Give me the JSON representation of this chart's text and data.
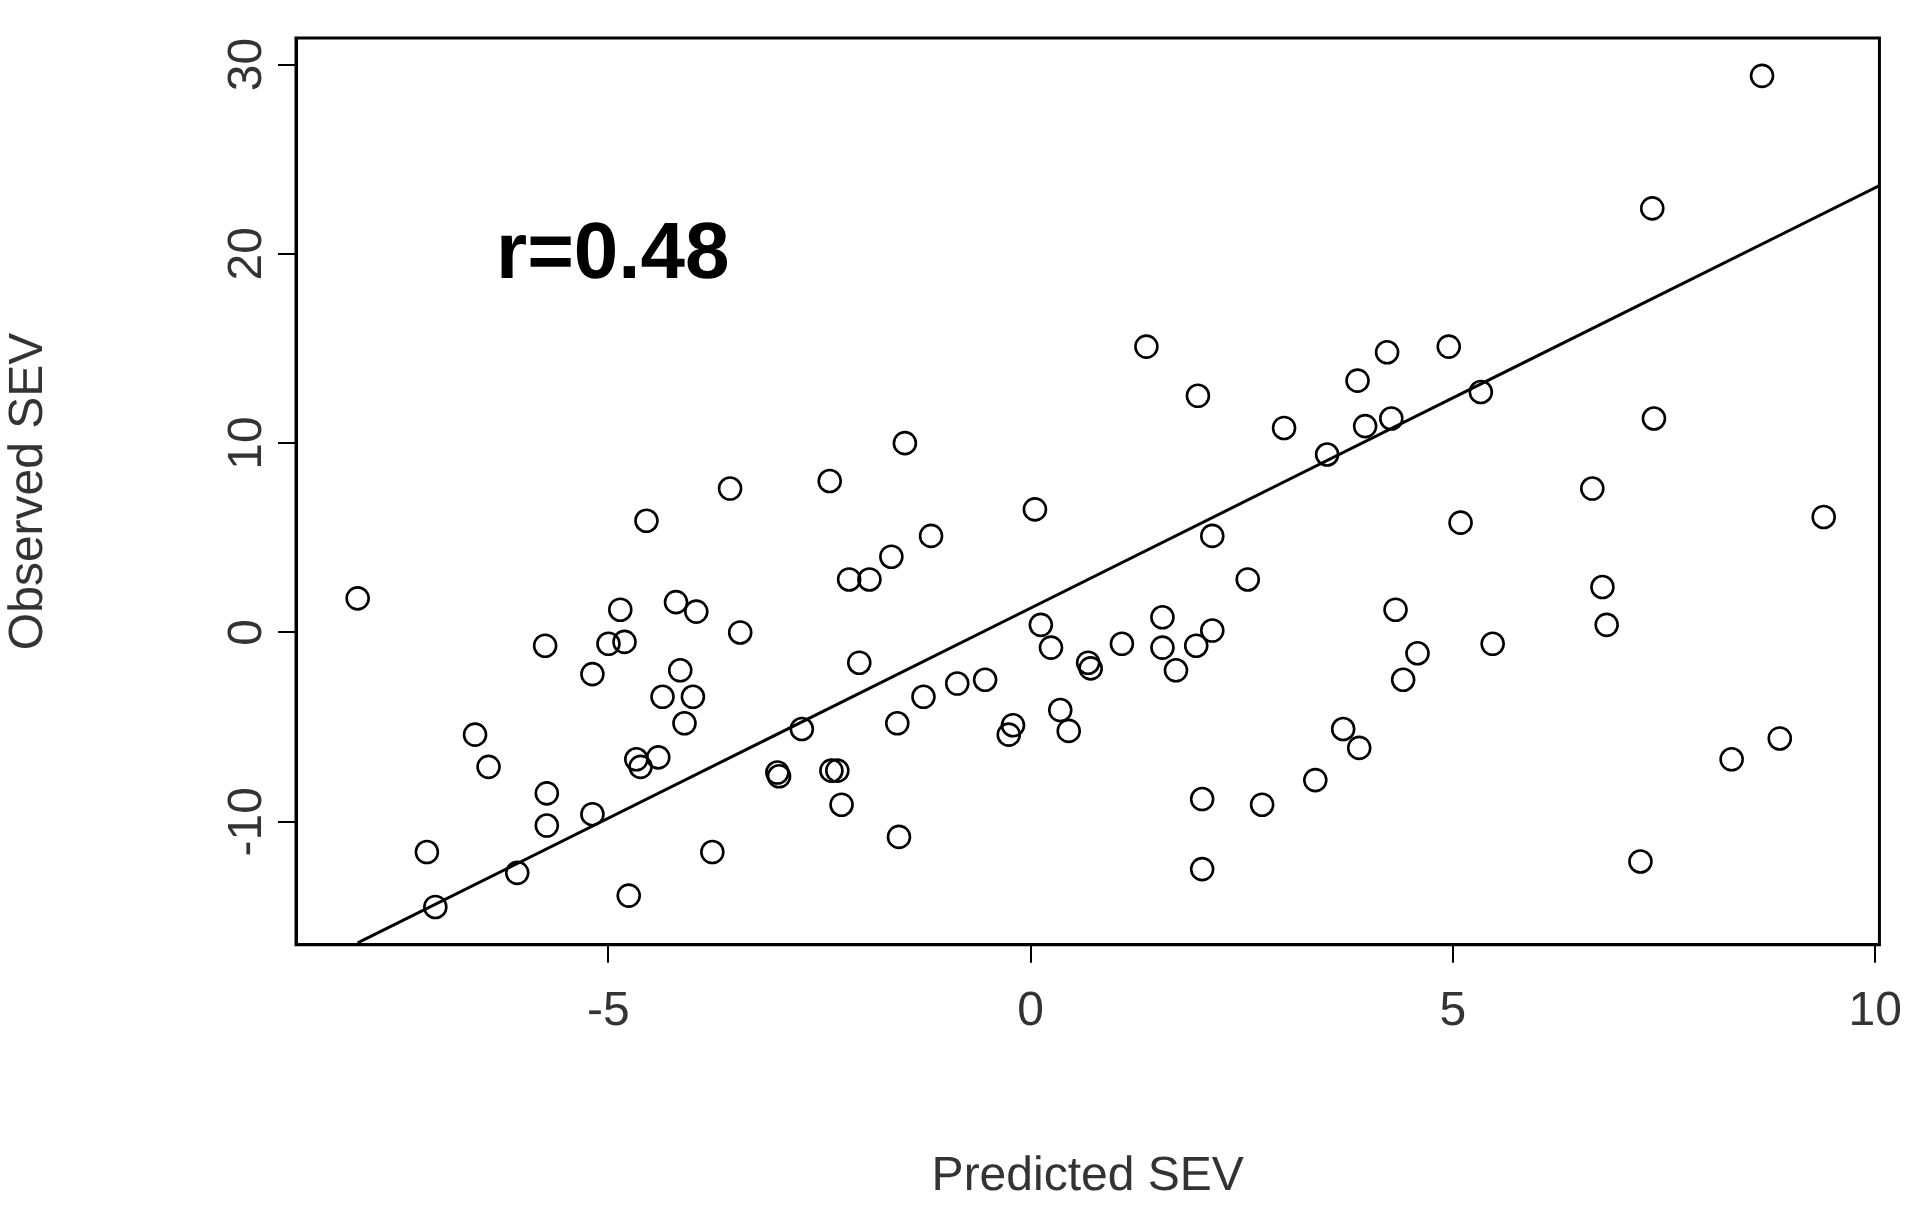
{
  "chart_data": {
    "type": "scatter",
    "xlabel": "Predicted SEV",
    "ylabel": "Observed SEV",
    "annotations": [
      "r=0.48"
    ],
    "xlim": [
      -8.7,
      10.05
    ],
    "ylim": [
      -16.5,
      31.4
    ],
    "xticks": [
      -5,
      0,
      5,
      10
    ],
    "yticks": [
      -10,
      0,
      10,
      20,
      30
    ],
    "grid": false,
    "legend": false,
    "marker": "circle",
    "series": [
      {
        "color": "#000000",
        "x": [
          -7.97,
          -7.15,
          -7.05,
          -6.58,
          -6.42,
          -6.08,
          -5.75,
          -5.73,
          -5.73,
          -5.19,
          -5.19,
          -5.0,
          -4.86,
          -4.81,
          -4.76,
          -4.67,
          -4.62,
          -4.55,
          -4.41,
          -4.36,
          -4.2,
          -4.15,
          -4.1,
          -4.0,
          -3.96,
          -3.77,
          -3.56,
          -3.44,
          -3.0,
          -2.98,
          -2.71,
          -2.38,
          -2.36,
          -2.29,
          -2.24,
          -2.15,
          -2.03,
          -1.91,
          -1.65,
          -1.58,
          -1.56,
          -1.49,
          -1.27,
          -1.18,
          -0.87,
          -0.54,
          -0.26,
          -0.21,
          0.05,
          0.12,
          0.24,
          0.35,
          0.45,
          0.68,
          0.71,
          1.08,
          1.37,
          1.56,
          1.56,
          1.72,
          1.96,
          1.98,
          2.03,
          2.03,
          2.15,
          2.15,
          2.57,
          2.74,
          3.0,
          3.37,
          3.51,
          3.7,
          3.87,
          3.89,
          3.96,
          4.22,
          4.27,
          4.32,
          4.41,
          4.58,
          4.95,
          5.09,
          5.33,
          5.47,
          6.65,
          6.77,
          6.82,
          7.22,
          7.36,
          7.38,
          8.3,
          8.66,
          8.87,
          9.39
        ],
        "values": [
          1.8,
          -11.6,
          -14.5,
          -5.4,
          -7.1,
          -12.7,
          -0.7,
          -8.5,
          -10.2,
          -2.2,
          -9.6,
          -0.6,
          1.2,
          -0.5,
          -13.9,
          -6.7,
          -7.1,
          5.9,
          -6.6,
          -3.4,
          1.6,
          -2.0,
          -4.8,
          -3.4,
          1.1,
          -11.6,
          7.6,
          0,
          -7.4,
          -7.6,
          -5.1,
          8.0,
          -7.3,
          -7.3,
          -9.1,
          2.8,
          -1.6,
          2.8,
          4.0,
          -4.8,
          -10.8,
          10.0,
          -3.4,
          5.1,
          -2.7,
          -2.5,
          -5.4,
          -4.9,
          6.5,
          0.4,
          -0.8,
          -4.1,
          -5.2,
          -1.6,
          -1.9,
          -0.6,
          15.1,
          0.8,
          -0.8,
          -2.0,
          -0.7,
          12.5,
          -8.8,
          -12.5,
          0.1,
          5.1,
          2.8,
          -9.1,
          10.8,
          -7.8,
          9.4,
          -5.1,
          13.3,
          -6.1,
          10.9,
          14.8,
          11.3,
          1.2,
          -2.5,
          -1.1,
          15.1,
          5.8,
          12.7,
          -0.6,
          7.6,
          2.4,
          0.4,
          -12.1,
          22.4,
          11.3,
          -6.7,
          29.4,
          -5.6,
          6.1
        ]
      },
      {
        "type": "line",
        "color": "#000000",
        "marker": "none",
        "line_style": "solid",
        "x": [
          -7.97,
          10.05
        ],
        "values": [
          -16.4,
          23.6
        ]
      }
    ]
  }
}
